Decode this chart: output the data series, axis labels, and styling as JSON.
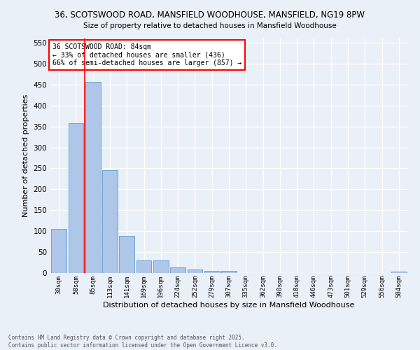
{
  "title": "36, SCOTSWOOD ROAD, MANSFIELD WOODHOUSE, MANSFIELD, NG19 8PW",
  "subtitle": "Size of property relative to detached houses in Mansfield Woodhouse",
  "xlabel": "Distribution of detached houses by size in Mansfield Woodhouse",
  "ylabel": "Number of detached properties",
  "categories": [
    "30sqm",
    "58sqm",
    "85sqm",
    "113sqm",
    "141sqm",
    "169sqm",
    "196sqm",
    "224sqm",
    "252sqm",
    "279sqm",
    "307sqm",
    "335sqm",
    "362sqm",
    "390sqm",
    "418sqm",
    "446sqm",
    "473sqm",
    "501sqm",
    "529sqm",
    "556sqm",
    "584sqm"
  ],
  "values": [
    105,
    357,
    457,
    245,
    88,
    30,
    30,
    13,
    8,
    5,
    5,
    0,
    0,
    0,
    0,
    0,
    0,
    0,
    0,
    0,
    4
  ],
  "bar_color": "#aec6e8",
  "bar_edge_color": "#5a9fd4",
  "vline_color": "red",
  "vline_x_index": 2,
  "annotation_title": "36 SCOTSWOOD ROAD: 84sqm",
  "annotation_line1": "← 33% of detached houses are smaller (436)",
  "annotation_line2": "66% of semi-detached houses are larger (857) →",
  "annotation_box_color": "white",
  "annotation_box_edge_color": "red",
  "ylim": [
    0,
    560
  ],
  "yticks": [
    0,
    50,
    100,
    150,
    200,
    250,
    300,
    350,
    400,
    450,
    500,
    550
  ],
  "footnote": "Contains HM Land Registry data © Crown copyright and database right 2025.\nContains public sector information licensed under the Open Government Licence v3.0.",
  "bg_color": "#eaf0f8",
  "plot_bg_color": "#eaf0f8",
  "grid_color": "#ffffff"
}
